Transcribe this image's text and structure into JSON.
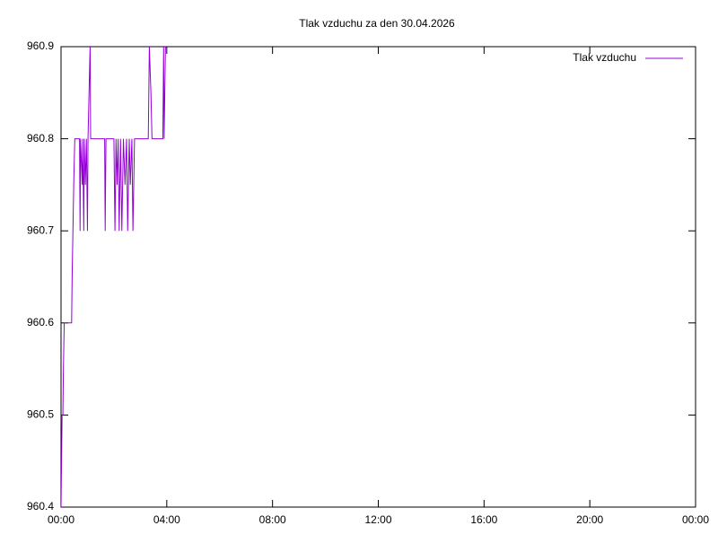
{
  "chart_data": {
    "type": "line",
    "title": "Tlak vzduchu za den 30.04.2026",
    "x": [
      0.0,
      0.02,
      0.04,
      0.07,
      0.09,
      0.12,
      0.4,
      0.42,
      0.45,
      0.48,
      0.52,
      0.7,
      0.72,
      0.74,
      0.8,
      0.82,
      0.86,
      0.88,
      0.92,
      0.96,
      1.0,
      1.02,
      1.06,
      1.1,
      1.12,
      1.65,
      1.67,
      1.7,
      2.0,
      2.04,
      2.08,
      2.12,
      2.16,
      2.2,
      2.25,
      2.3,
      2.36,
      2.42,
      2.48,
      2.52,
      2.58,
      2.62,
      2.68,
      2.72,
      2.78,
      3.3,
      3.34,
      3.4,
      3.44,
      3.85,
      3.88,
      3.9,
      3.95
    ],
    "series": [
      {
        "name": "Tlak vzduchu",
        "color": "#9400d3",
        "values": [
          960.4,
          960.45,
          960.5,
          960.5,
          960.55,
          960.6,
          960.6,
          960.65,
          960.7,
          960.75,
          960.8,
          960.8,
          960.7,
          960.8,
          960.75,
          960.8,
          960.7,
          960.8,
          960.75,
          960.8,
          960.7,
          960.8,
          960.85,
          960.9,
          960.8,
          960.8,
          960.7,
          960.8,
          960.8,
          960.7,
          960.8,
          960.75,
          960.8,
          960.7,
          960.8,
          960.7,
          960.8,
          960.75,
          960.8,
          960.7,
          960.8,
          960.75,
          960.8,
          960.7,
          960.8,
          960.8,
          960.9,
          960.85,
          960.8,
          960.8,
          960.9,
          960.8,
          960.9
        ]
      }
    ],
    "xlim": [
      0,
      24
    ],
    "xticks": [
      {
        "value": 0,
        "label": "00:00"
      },
      {
        "value": 4,
        "label": "04:00"
      },
      {
        "value": 8,
        "label": "08:00"
      },
      {
        "value": 12,
        "label": "12:00"
      },
      {
        "value": 16,
        "label": "16:00"
      },
      {
        "value": 20,
        "label": "20:00"
      },
      {
        "value": 24,
        "label": "00:00"
      }
    ],
    "ylim": [
      960.4,
      960.9
    ],
    "yticks": [
      960.4,
      960.5,
      960.6,
      960.7,
      960.8,
      960.9
    ],
    "grid": false,
    "legend": "top-right"
  }
}
